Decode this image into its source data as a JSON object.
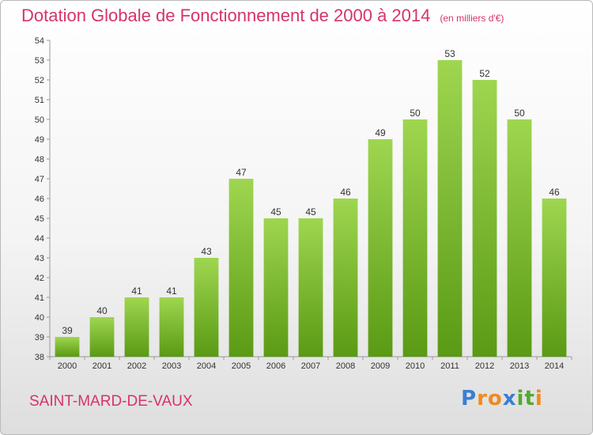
{
  "title": "Dotation Globale de Fonctionnement de 2000 à 2014",
  "subtitle": "(en milliers d'€)",
  "commune": "SAINT-MARD-DE-VAUX",
  "logo": {
    "letters": [
      "P",
      "r",
      "o",
      "x",
      "i",
      "t",
      "i"
    ],
    "colors": [
      "#3b7fd1",
      "#f08a1c",
      "#f08a1c",
      "#3b7fd1",
      "#56a832",
      "#56a832",
      "#f08a1c"
    ]
  },
  "colors": {
    "bar_top": "#9fd650",
    "bar_bottom": "#5a9a14",
    "accent": "#d6336c"
  },
  "chart_data": {
    "type": "bar",
    "categories": [
      "2000",
      "2001",
      "2002",
      "2003",
      "2004",
      "2005",
      "2006",
      "2007",
      "2008",
      "2009",
      "2010",
      "2011",
      "2012",
      "2013",
      "2014"
    ],
    "values": [
      39,
      40,
      41,
      41,
      43,
      47,
      45,
      45,
      46,
      49,
      50,
      53,
      52,
      50,
      46
    ],
    "title": "Dotation Globale de Fonctionnement de 2000 à 2014",
    "xlabel": "",
    "ylabel": "",
    "ylim": [
      38,
      54
    ],
    "yticks": [
      38,
      39,
      40,
      41,
      42,
      43,
      44,
      45,
      46,
      47,
      48,
      49,
      50,
      51,
      52,
      53,
      54
    ],
    "grid": false,
    "data_labels": true
  }
}
